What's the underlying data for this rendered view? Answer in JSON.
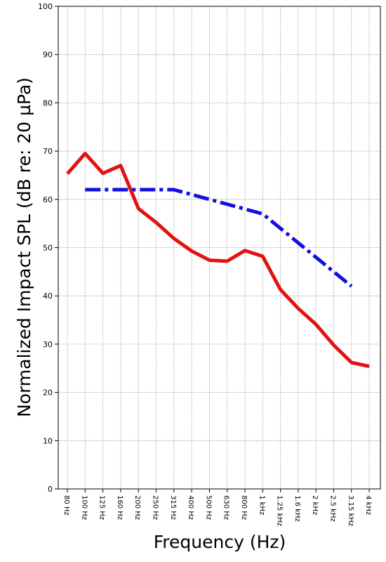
{
  "chart_data": {
    "type": "line",
    "xlabel": "Frequency (Hz)",
    "ylabel": "Normalized Impact SPL (dB re: 20 µPa)",
    "ylim": [
      0,
      100
    ],
    "yticks": [
      0,
      10,
      20,
      30,
      40,
      50,
      60,
      70,
      80,
      90,
      100
    ],
    "grid": true,
    "categories": [
      "80 Hz",
      "100 Hz",
      "125 Hz",
      "160 Hz",
      "200 Hz",
      "250 Hz",
      "315 Hz",
      "400 Hz",
      "500 Hz",
      "630 Hz",
      "800 Hz",
      "1 kHz",
      "1.25 kHz",
      "1.6 kHz",
      "2 kHz",
      "2.5 kHz",
      "3.15 kHz",
      "4 kHz"
    ],
    "series": [
      {
        "color": "#e31212",
        "style": "solid",
        "values": [
          65.3,
          69.5,
          65.4,
          67.0,
          58.1,
          55.2,
          51.9,
          49.3,
          47.4,
          47.2,
          49.4,
          48.2,
          41.3,
          37.4,
          34.1,
          29.8,
          26.2,
          25.4
        ]
      },
      {
        "color": "#1010e0",
        "style": "dashdot",
        "values": [
          null,
          62,
          62,
          62,
          62,
          62,
          62,
          61,
          60,
          59,
          58,
          57,
          54,
          51,
          48,
          45,
          42,
          null
        ]
      }
    ]
  }
}
